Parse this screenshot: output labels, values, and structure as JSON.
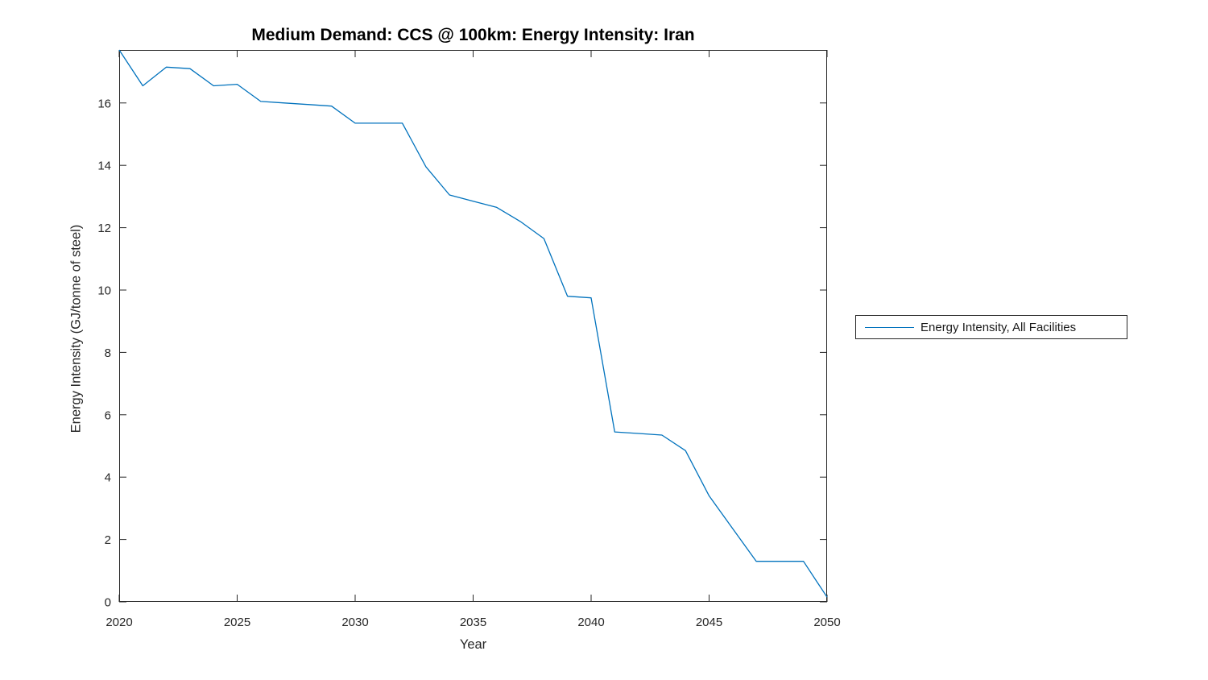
{
  "chart_data": {
    "type": "line",
    "title": "Medium Demand: CCS @ 100km: Energy Intensity: Iran",
    "xlabel": "Year",
    "ylabel": "Energy Intensity (GJ/tonne of steel)",
    "x": [
      2020,
      2021,
      2022,
      2023,
      2024,
      2025,
      2026,
      2027,
      2028,
      2029,
      2030,
      2031,
      2032,
      2033,
      2034,
      2035,
      2036,
      2037,
      2038,
      2039,
      2040,
      2041,
      2042,
      2043,
      2044,
      2045,
      2046,
      2047,
      2048,
      2049,
      2050
    ],
    "series": [
      {
        "name": "Energy Intensity, All Facilities",
        "color": "#0072BD",
        "values": [
          17.7,
          16.55,
          17.15,
          17.1,
          16.55,
          16.6,
          16.05,
          16.0,
          15.95,
          15.9,
          15.35,
          15.35,
          15.35,
          13.95,
          13.05,
          12.85,
          12.65,
          12.2,
          11.65,
          9.8,
          9.75,
          5.45,
          5.4,
          5.35,
          4.85,
          3.4,
          2.35,
          1.3,
          1.3,
          1.3,
          0.15
        ]
      }
    ],
    "xlim": [
      2020,
      2050
    ],
    "ylim": [
      0,
      17.7
    ],
    "xticks": [
      2020,
      2025,
      2030,
      2035,
      2040,
      2045,
      2050
    ],
    "yticks": [
      0,
      2,
      4,
      6,
      8,
      10,
      12,
      14,
      16
    ],
    "grid": false,
    "box": true,
    "tick_dir": "in",
    "axis_color": "#262626",
    "legend_position": "outside-right"
  }
}
